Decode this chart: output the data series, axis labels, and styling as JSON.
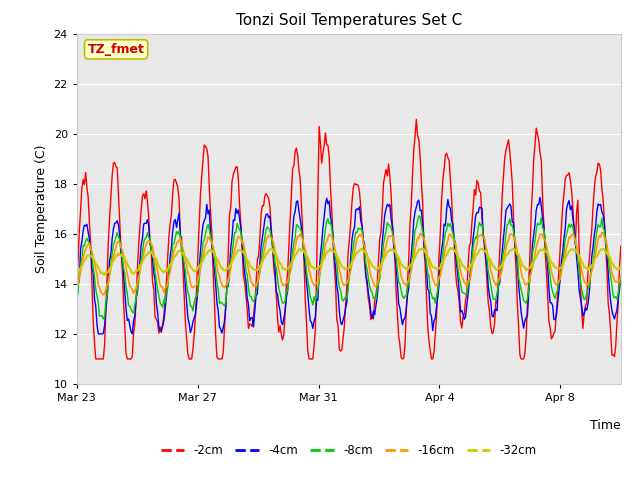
{
  "title": "Tonzi Soil Temperatures Set C",
  "xlabel": "Time",
  "ylabel": "Soil Temperature (C)",
  "ylim": [
    10,
    24
  ],
  "yticks": [
    10,
    12,
    14,
    16,
    18,
    20,
    22,
    24
  ],
  "annotation_text": "TZ_fmet",
  "annotation_color": "#cc0000",
  "annotation_bg": "#ffffcc",
  "annotation_border": "#bbbb00",
  "colors": {
    "-2cm": "#ff0000",
    "-4cm": "#0000ff",
    "-8cm": "#00cc00",
    "-16cm": "#ff9900",
    "-32cm": "#cccc00"
  },
  "legend_labels": [
    "-2cm",
    "-4cm",
    "-8cm",
    "-16cm",
    "-32cm"
  ],
  "plot_bg": "#e8e8e8",
  "fig_bg": "#ffffff",
  "grid_color": "#ffffff",
  "xtick_labels": [
    "Mar 23",
    "Mar 27",
    "Mar 31",
    "Apr 4",
    "Apr 8"
  ],
  "xtick_positions": [
    0,
    4,
    8,
    12,
    16
  ],
  "n_days": 18
}
